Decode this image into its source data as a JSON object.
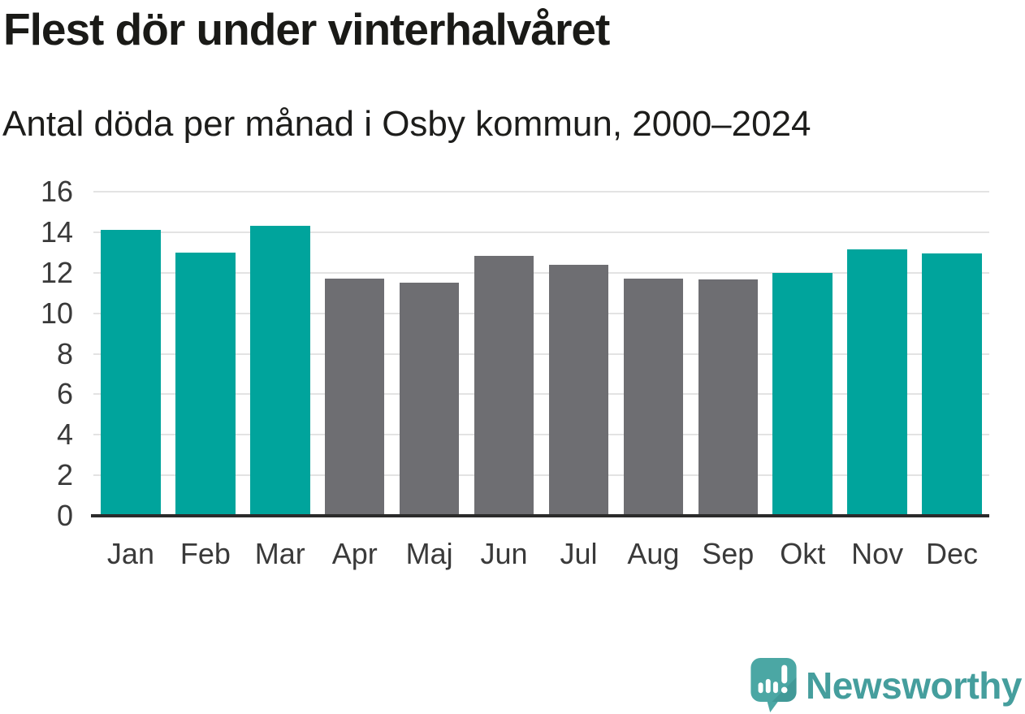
{
  "colors": {
    "winter_bar": "#00a49c",
    "summer_bar": "#6e6e72",
    "gridline": "#e3e3e3",
    "axis_line": "#2b2b2b",
    "title_text": "#1a1a17",
    "tick_text": "#3a3a3a",
    "logo_text_teal": "#459e9d",
    "logo_bubble_teal": "#4ba7a4"
  },
  "chart_data": {
    "type": "bar",
    "title": "Flest dör under vinterhalvåret",
    "subtitle": "Antal döda per månad i Osby kommun, 2000–2024",
    "categories": [
      "Jan",
      "Feb",
      "Mar",
      "Apr",
      "Maj",
      "Jun",
      "Jul",
      "Aug",
      "Sep",
      "Okt",
      "Nov",
      "Dec"
    ],
    "values": [
      14.1,
      13.0,
      14.3,
      11.7,
      11.5,
      12.85,
      12.4,
      11.7,
      11.65,
      12.0,
      13.15,
      12.95
    ],
    "bar_groups": [
      "winter",
      "winter",
      "winter",
      "summer",
      "summer",
      "summer",
      "summer",
      "summer",
      "summer",
      "winter",
      "winter",
      "winter"
    ],
    "group_colors": {
      "winter": "#00a49c",
      "summer": "#6e6e72"
    },
    "xlabel": "",
    "ylabel": "",
    "ylim": [
      0,
      16
    ],
    "yticks": [
      0,
      2,
      4,
      6,
      8,
      10,
      12,
      14,
      16
    ],
    "grid": "horizontal",
    "legend": "none"
  },
  "footer": {
    "brand": "Newsworthy"
  }
}
